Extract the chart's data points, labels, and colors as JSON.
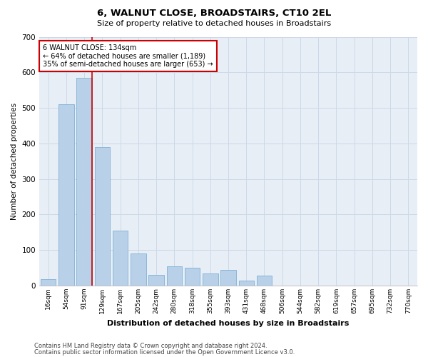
{
  "title": "6, WALNUT CLOSE, BROADSTAIRS, CT10 2EL",
  "subtitle": "Size of property relative to detached houses in Broadstairs",
  "xlabel": "Distribution of detached houses by size in Broadstairs",
  "ylabel": "Number of detached properties",
  "footnote1": "Contains HM Land Registry data © Crown copyright and database right 2024.",
  "footnote2": "Contains public sector information licensed under the Open Government Licence v3.0.",
  "annotation_line1": "6 WALNUT CLOSE: 134sqm",
  "annotation_line2": "← 64% of detached houses are smaller (1,189)",
  "annotation_line3": "35% of semi-detached houses are larger (653) →",
  "bar_color": "#b8d0e8",
  "bar_edge_color": "#6fa8d0",
  "grid_color": "#cdd8e8",
  "bg_color": "#e8eef5",
  "red_line_color": "#cc0000",
  "categories": [
    "16sqm",
    "54sqm",
    "91sqm",
    "129sqm",
    "167sqm",
    "205sqm",
    "242sqm",
    "280sqm",
    "318sqm",
    "355sqm",
    "393sqm",
    "431sqm",
    "468sqm",
    "506sqm",
    "544sqm",
    "582sqm",
    "619sqm",
    "657sqm",
    "695sqm",
    "732sqm",
    "770sqm"
  ],
  "values": [
    18,
    510,
    585,
    390,
    155,
    90,
    30,
    55,
    50,
    35,
    45,
    15,
    28,
    0,
    0,
    0,
    0,
    0,
    0,
    0,
    0
  ],
  "ylim": [
    0,
    700
  ],
  "yticks": [
    0,
    100,
    200,
    300,
    400,
    500,
    600,
    700
  ],
  "red_line_bin": 2,
  "figsize": [
    6.0,
    5.0
  ],
  "dpi": 100
}
